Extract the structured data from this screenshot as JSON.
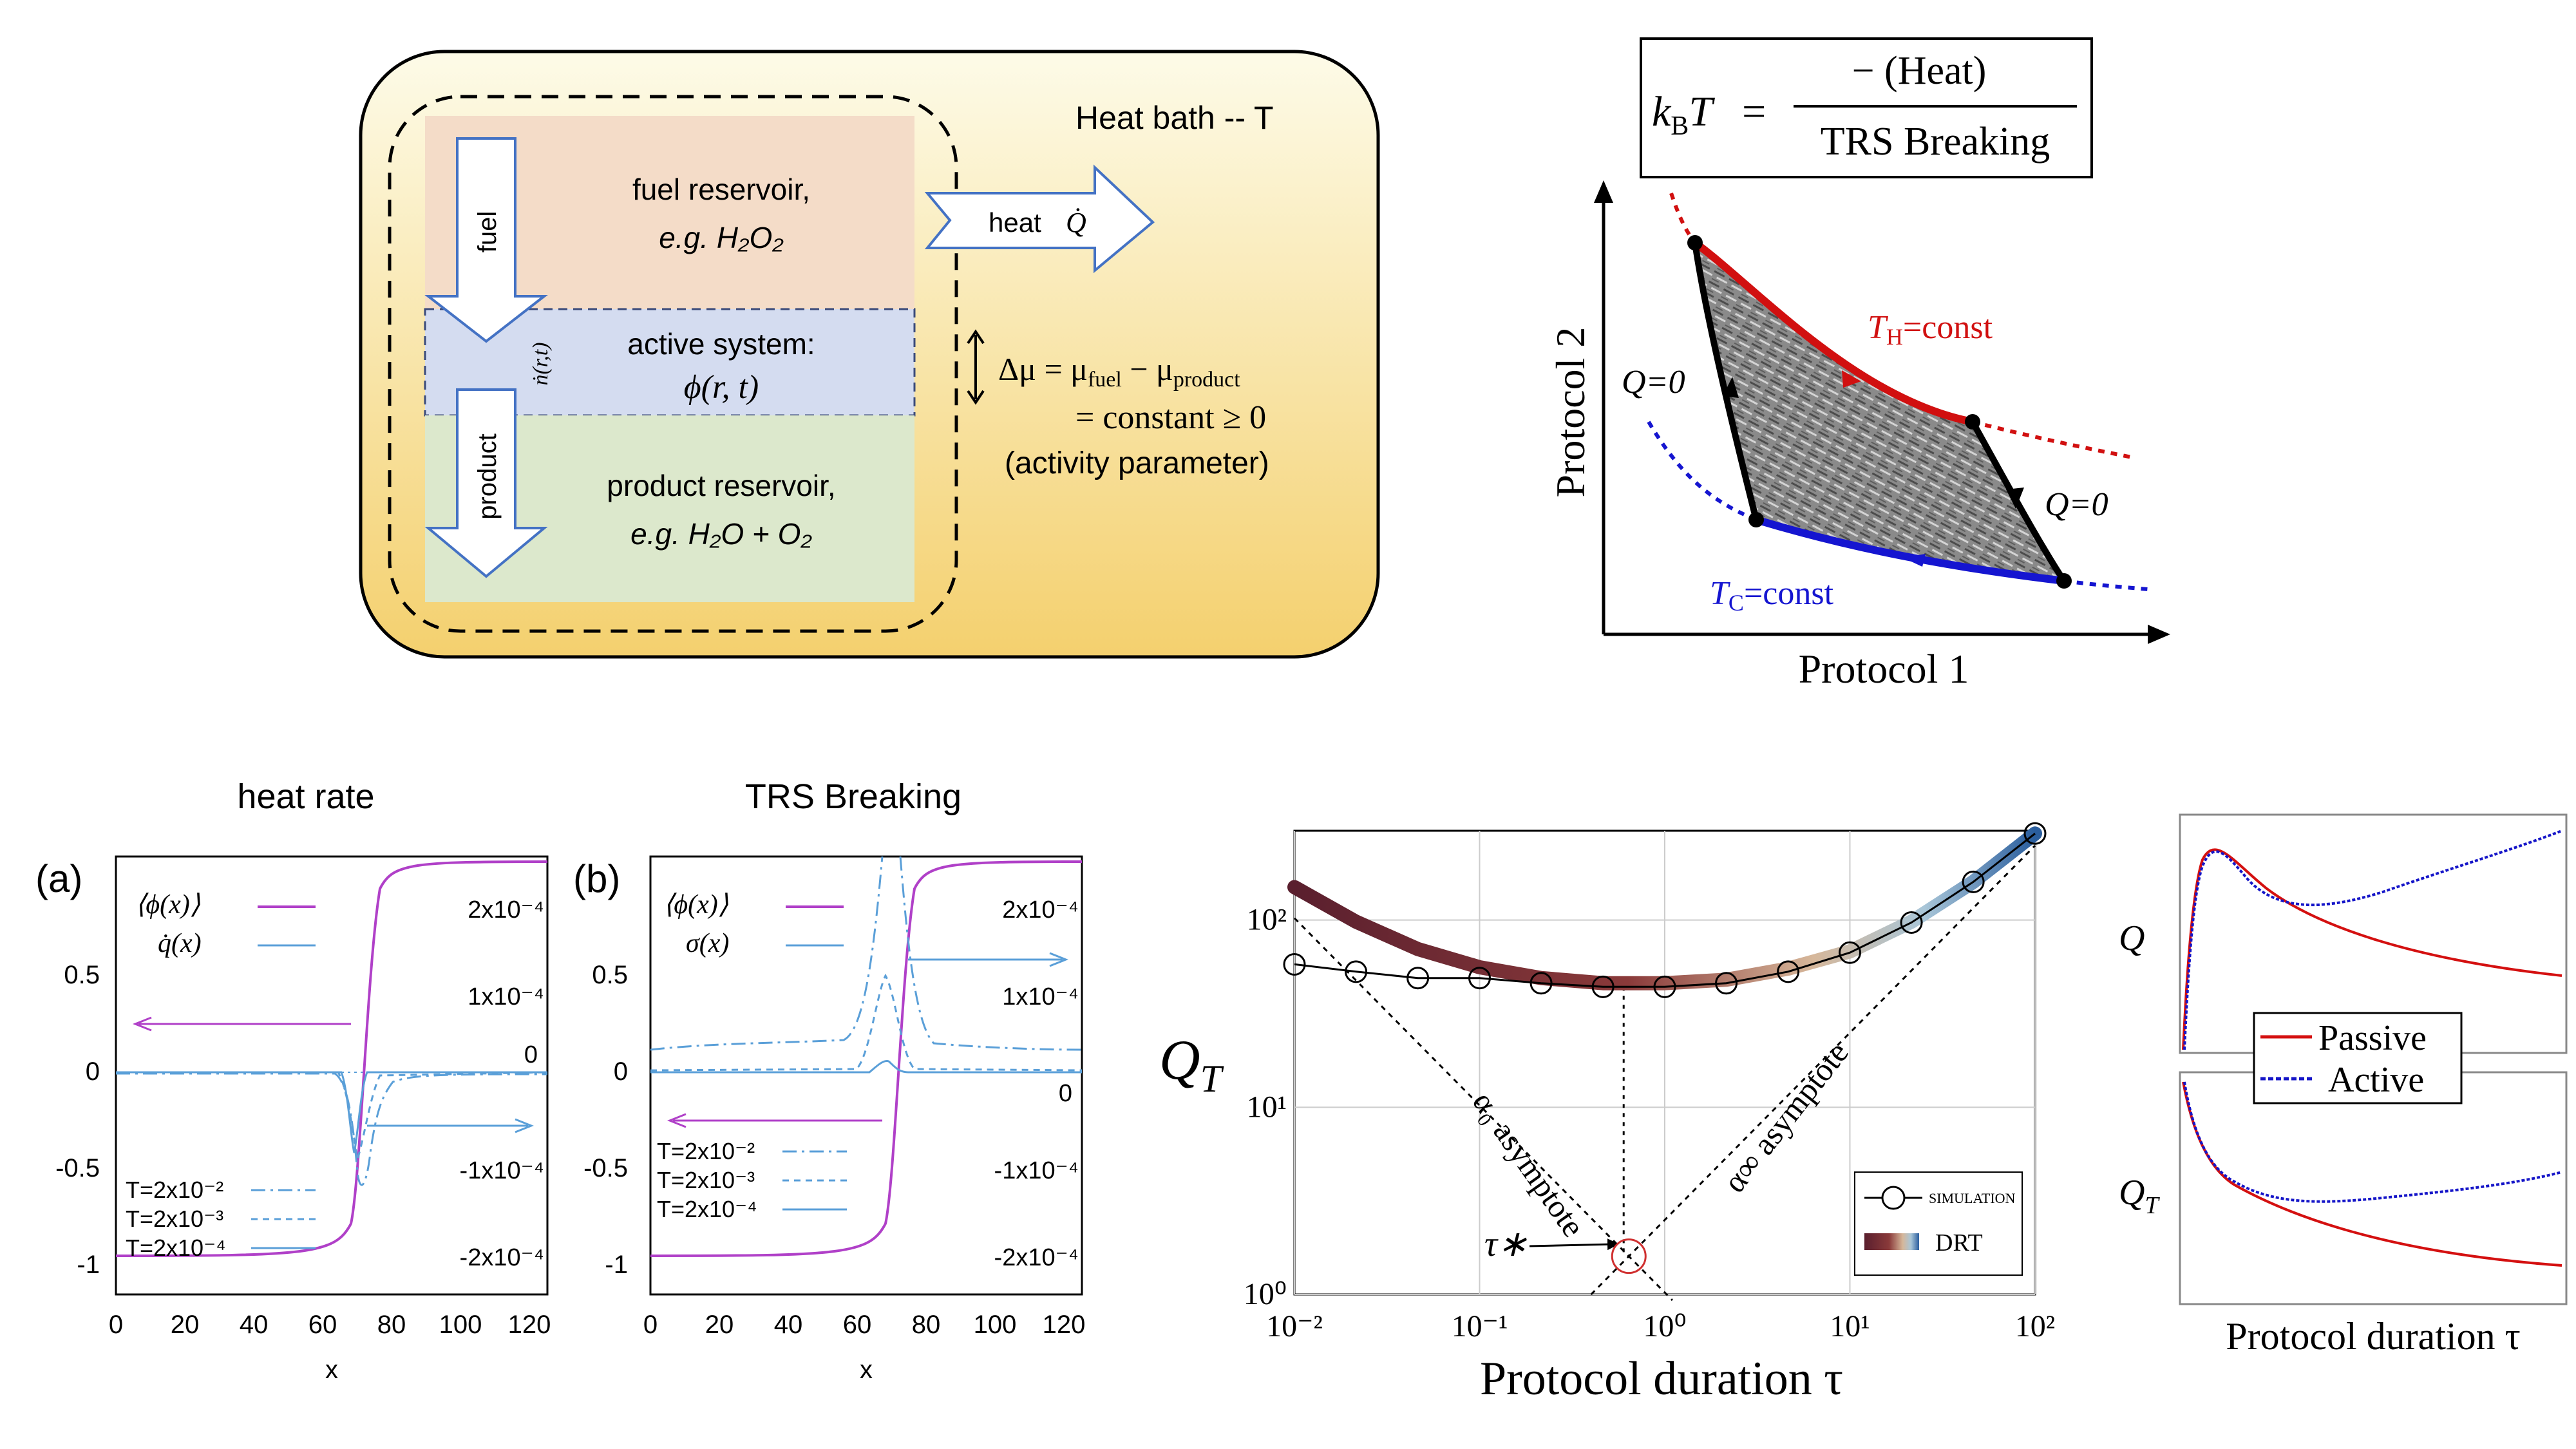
{
  "colors": {
    "bath_top": "#fdfbe6",
    "bath_bottom": "#f4d47a",
    "fuel_bg": "#f4dcc8",
    "active_bg": "#d4dcf0",
    "product_bg": "#dce8cc",
    "red": "#d11010",
    "blue": "#1515d0",
    "purple": "#b040c8",
    "lightblue": "#5a9fd8",
    "orange": "#e4562a",
    "arrow_blue": "#4472c4"
  },
  "schematic": {
    "heat_bath": "Heat bath -- T",
    "fuel_arrow": "fuel",
    "product_arrow": "product",
    "nflux": "ṅ(r,t)",
    "heat_label": "heat",
    "qdot": "Q̇",
    "fuel_res_line1": "fuel reservoir,",
    "fuel_res_line2": "e.g. H₂O₂",
    "active_line1": "active system:",
    "active_line2": "ϕ(r, t)",
    "product_res_line1": "product reservoir,",
    "product_res_line2": "e.g. H₂O + O₂",
    "delta_mu": "Δμ = μ",
    "mu_fuel_sub": "fuel",
    "minus_mu": " − μ",
    "mu_product_sub": "product",
    "constant": "= constant ≥ 0",
    "activity": "(activity parameter)"
  },
  "formula": {
    "lhs_k": "k",
    "lhs_b": "B",
    "lhs_t": "T",
    "numerator": "− (Heat)",
    "denominator": "TRS Breaking",
    "equals": "="
  },
  "carnot": {
    "ylabel": "Protocol 2",
    "xlabel": "Protocol 1",
    "th_label": "T",
    "th_sub": "H",
    "th_rest": "=const",
    "tc_label": "T",
    "tc_sub": "C",
    "tc_rest": "=const",
    "q0_left": "Q=0",
    "q0_right": "Q=0"
  },
  "panel_a": {
    "title": "heat rate",
    "tag": "(a)",
    "legend_phi": "⟨ϕ(x)⟩",
    "legend_q": "q̇(x)",
    "temps": [
      "T=2x10⁻²",
      "T=2x10⁻³",
      "T=2x10⁻⁴"
    ],
    "left_ticks": [
      "0.5",
      "0",
      "-0.5",
      "-1"
    ],
    "right_ticks": [
      "2x10⁻⁴",
      "1x10⁻⁴",
      "0",
      "-1x10⁻⁴",
      "-2x10⁻⁴"
    ],
    "x_ticks": [
      "0",
      "20",
      "40",
      "60",
      "80",
      "100",
      "120"
    ],
    "xlabel": "x"
  },
  "panel_b": {
    "title": "TRS Breaking",
    "tag": "(b)",
    "legend_phi": "⟨ϕ(x)⟩",
    "legend_s": "σ(x)",
    "temps": [
      "T=2x10⁻²",
      "T=2x10⁻³",
      "T=2x10⁻⁴"
    ],
    "left_ticks": [
      "0.5",
      "0",
      "-0.5",
      "-1"
    ],
    "right_ticks": [
      "2x10⁻⁴",
      "1x10⁻⁴",
      "0",
      "-1x10⁻⁴",
      "-2x10⁻⁴"
    ],
    "x_ticks": [
      "0",
      "20",
      "40",
      "60",
      "80",
      "100",
      "120"
    ],
    "xlabel": "x"
  },
  "chart_data": {
    "type": "line",
    "x_scale": "log",
    "y_scale": "log",
    "xlim": [
      0.01,
      100
    ],
    "ylim": [
      1,
      300
    ],
    "xlabel": "Protocol duration τ",
    "ylabel": "Q_T",
    "y_tick_labels": [
      "10⁰",
      "10¹",
      "10²"
    ],
    "x_tick_labels": [
      "10⁻²",
      "10⁻¹",
      "10⁰",
      "10¹",
      "10²"
    ],
    "grid": true,
    "legend": "bottom-right",
    "legend_sim": "SIMULATION",
    "legend_drt": "DRT",
    "annotations": [
      "α₀ asymptote",
      "α∞ asymptote",
      "τ∗"
    ],
    "series": [
      {
        "name": "SIMULATION",
        "x": [
          0.01,
          0.0215,
          0.0464,
          0.1,
          0.215,
          0.464,
          1.0,
          2.15,
          4.64,
          10.0,
          21.5,
          46.4,
          100.0
        ],
        "y": [
          58,
          53,
          49,
          49,
          46,
          44,
          44,
          46,
          53,
          67,
          97,
          160,
          290
        ]
      },
      {
        "name": "DRT",
        "x": [
          0.01,
          0.0215,
          0.0464,
          0.1,
          0.215,
          0.464,
          1.0,
          2.15,
          4.64,
          10.0,
          21.5,
          46.4,
          100.0
        ],
        "y": [
          150,
          98,
          70,
          56,
          49,
          46,
          46,
          48,
          55,
          68,
          98,
          160,
          290
        ]
      }
    ]
  },
  "mini": {
    "q_label": "Q",
    "qt_label": "Q",
    "qt_sub": "T",
    "legend_passive": "Passive",
    "legend_active": "Active",
    "xlabel": "Protocol duration τ"
  }
}
